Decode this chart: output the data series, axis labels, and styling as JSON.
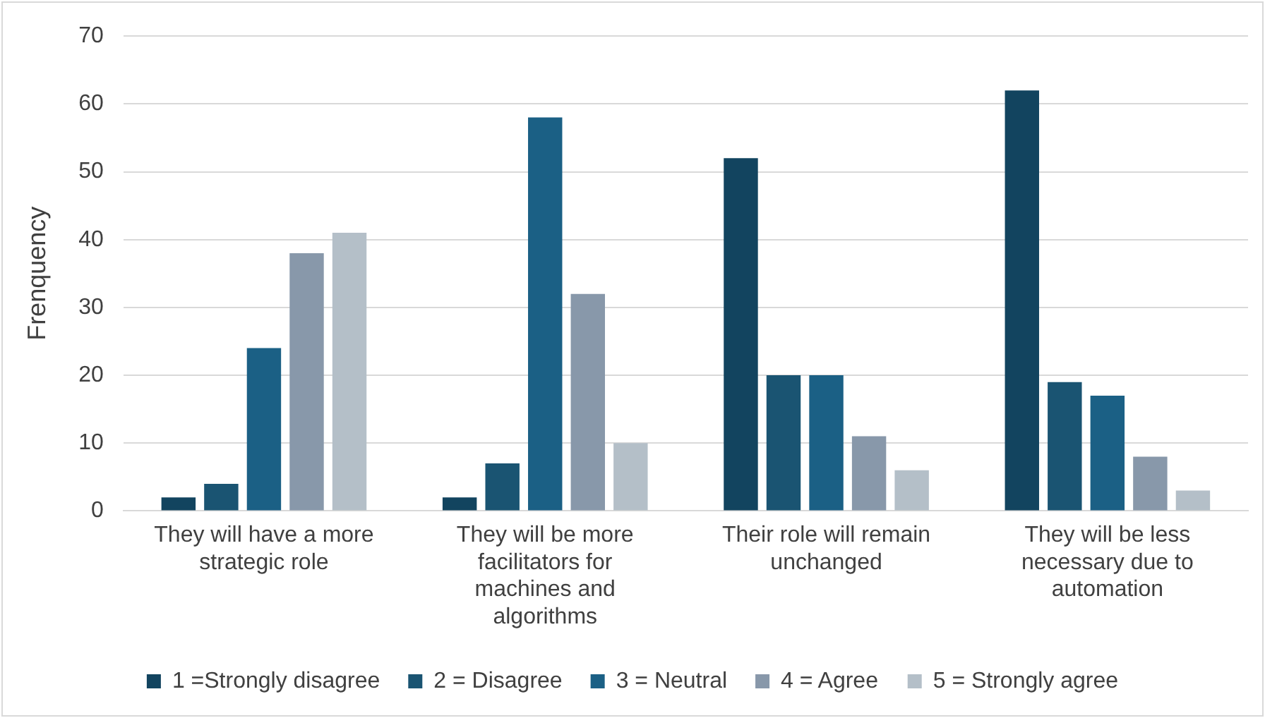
{
  "chart_data": {
    "type": "bar",
    "ylabel": "Frenquency",
    "categories": [
      "They will have a more strategic role",
      "They will be more facilitators for machines and algorithms",
      "Their role will remain unchanged",
      "They will be less necessary due to automation"
    ],
    "series": [
      {
        "name": "1 =Strongly disagree",
        "color": "#12445f",
        "values": [
          2,
          2,
          52,
          62
        ]
      },
      {
        "name": "2 = Disagree",
        "color": "#1a5472",
        "values": [
          4,
          7,
          20,
          19
        ]
      },
      {
        "name": "3 = Neutral",
        "color": "#1b6085",
        "values": [
          24,
          58,
          20,
          17
        ]
      },
      {
        "name": "4 = Agree",
        "color": "#8898aa",
        "values": [
          38,
          32,
          11,
          8
        ]
      },
      {
        "name": "5 = Strongly agree",
        "color": "#b4bfc8",
        "values": [
          41,
          10,
          6,
          3
        ]
      }
    ],
    "ylim": [
      0,
      70
    ],
    "yticks": [
      0,
      10,
      20,
      30,
      40,
      50,
      60,
      70
    ],
    "grid": "y",
    "legend": "bottom"
  }
}
